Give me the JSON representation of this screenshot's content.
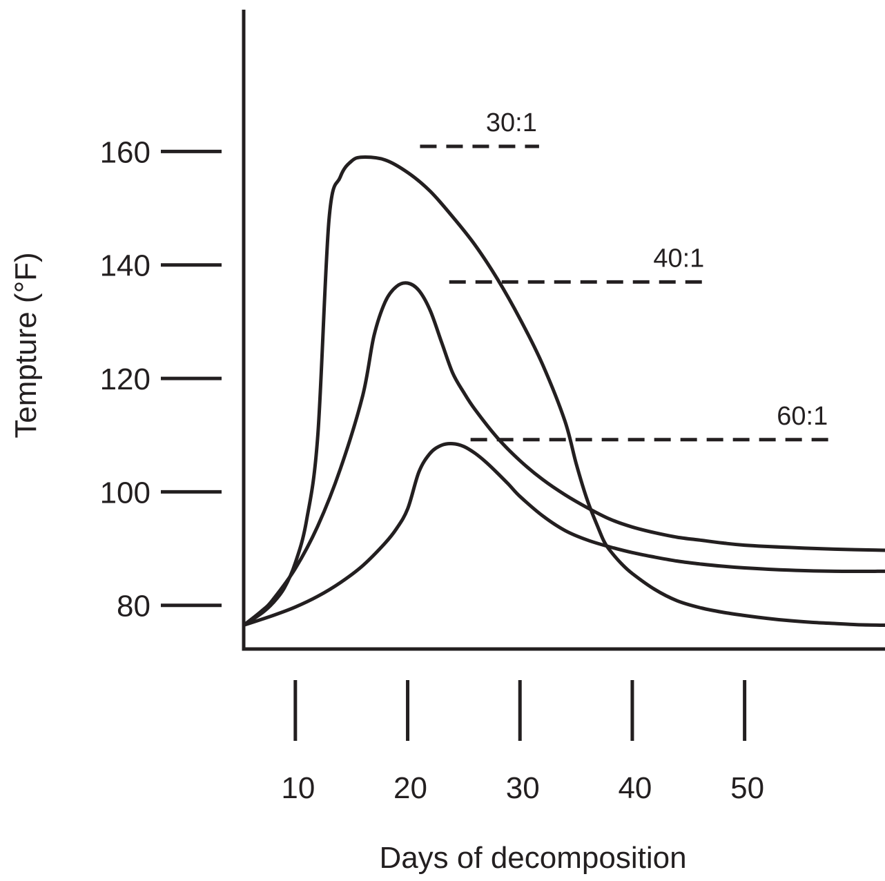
{
  "chart_data": {
    "type": "line",
    "title": "",
    "xlabel": "Days of decomposition",
    "ylabel": "Tempture (°F)",
    "xlim": [
      5.4,
      62.5
    ],
    "ylim": [
      72.3,
      185
    ],
    "xticks": [
      10,
      20,
      30,
      40,
      50
    ],
    "yticks": [
      80,
      100,
      120,
      140,
      160
    ],
    "grid": false,
    "legend": "none",
    "line_color": "#231f20",
    "series": [
      {
        "x": [
          5.4,
          7,
          8,
          9,
          10,
          11,
          12,
          13,
          14,
          15,
          16,
          18,
          20,
          22,
          24,
          26,
          28,
          30,
          32,
          34,
          35,
          36,
          37,
          37.5,
          38,
          39,
          40,
          42,
          44,
          46,
          48,
          50,
          52,
          54,
          56,
          58,
          60,
          62.5
        ],
        "y": [
          76.5,
          78.6,
          80.4,
          83.0,
          87.5,
          95.0,
          110.0,
          148.0,
          155.5,
          158.3,
          159.0,
          158.5,
          156.3,
          153.0,
          148.5,
          143.5,
          137.5,
          130.5,
          122.5,
          112.5,
          105.0,
          98.5,
          93.5,
          91.2,
          89.7,
          87.4,
          85.6,
          82.8,
          80.8,
          79.6,
          78.8,
          78.2,
          77.7,
          77.3,
          77.0,
          76.8,
          76.6,
          76.5
        ]
      },
      {
        "x": [
          5.4,
          7,
          8,
          10,
          12,
          14,
          16,
          17,
          18,
          19,
          20,
          21,
          22,
          23,
          24,
          25,
          26,
          28,
          30,
          32,
          34,
          36,
          38,
          40,
          42,
          44,
          46,
          48,
          50,
          54,
          58,
          62.5
        ],
        "y": [
          76.5,
          79.0,
          81.0,
          86.5,
          94.0,
          104.0,
          117.0,
          127.5,
          133.5,
          136.2,
          136.8,
          135.5,
          132.0,
          126.5,
          121.0,
          117.5,
          114.5,
          109.5,
          105.5,
          102.2,
          99.5,
          97.2,
          95.2,
          93.8,
          92.8,
          92.0,
          91.5,
          91.0,
          90.6,
          90.2,
          89.9,
          89.7
        ]
      },
      {
        "x": [
          5.4,
          8,
          10,
          12,
          14,
          16,
          18,
          19,
          20,
          21,
          22,
          23,
          24,
          25,
          26,
          27,
          28,
          29,
          30,
          32,
          34,
          36,
          38,
          40,
          42,
          44,
          46,
          48,
          50,
          54,
          58,
          62.5
        ],
        "y": [
          76.5,
          78.2,
          79.7,
          81.6,
          84.0,
          87.0,
          91.0,
          93.5,
          97.0,
          103.5,
          106.8,
          108.2,
          108.5,
          108.0,
          106.8,
          105.2,
          103.3,
          101.3,
          99.2,
          95.8,
          93.2,
          91.5,
          90.3,
          89.3,
          88.5,
          87.8,
          87.3,
          86.9,
          86.6,
          86.2,
          86.0,
          86.0
        ]
      }
    ],
    "reference_lines": [
      {
        "label": "30:1",
        "y": 160.9,
        "x_start": 21.1,
        "x_end": 31.7
      },
      {
        "label": "40:1",
        "y": 137.0,
        "x_start": 23.7,
        "x_end": 46.6
      },
      {
        "label": "60:1",
        "y": 109.2,
        "x_start": 25.6,
        "x_end": 57.6
      }
    ]
  }
}
